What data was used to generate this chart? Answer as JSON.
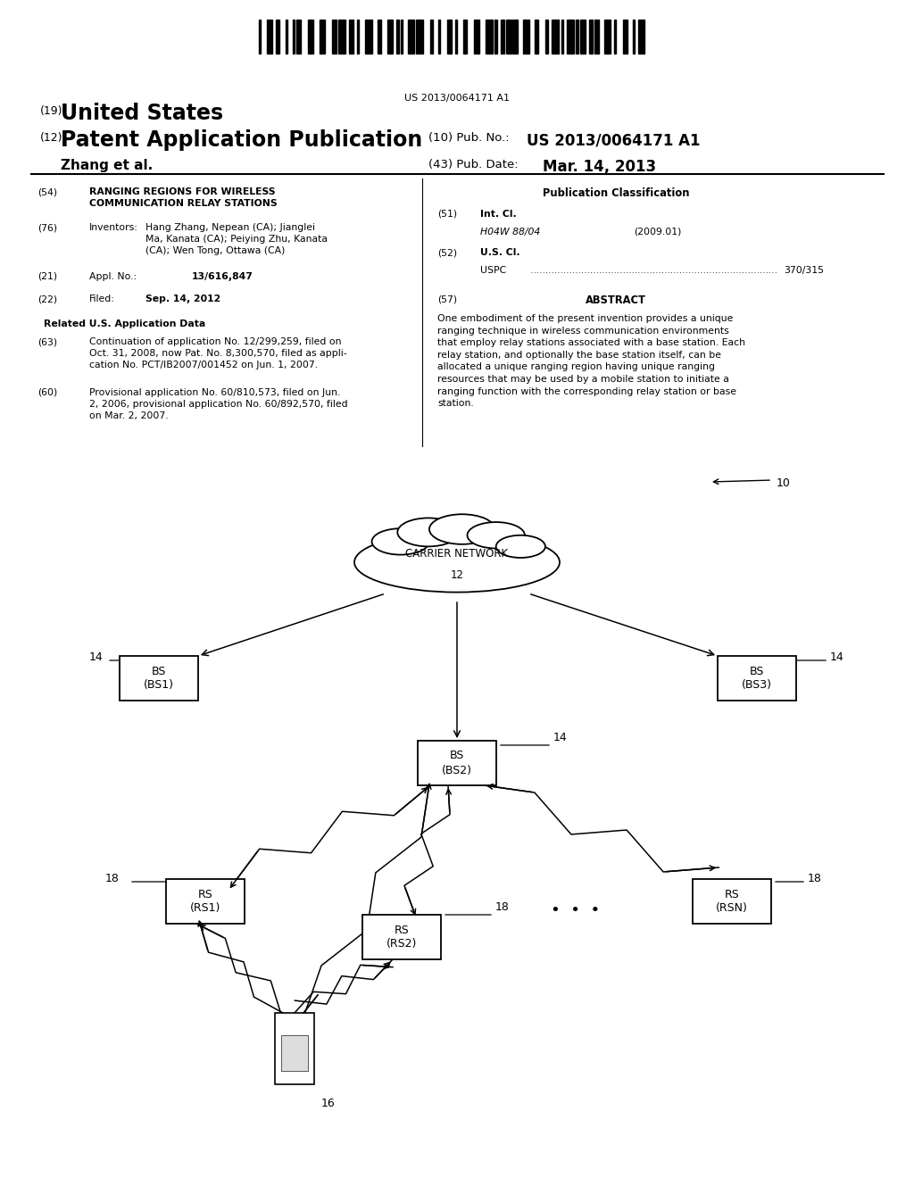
{
  "bg_color": "#ffffff",
  "barcode_text": "US 2013/0064171 A1",
  "header": {
    "country_num": "(19)",
    "country": "United States",
    "type_num": "(12)",
    "type": "Patent Application Publication",
    "pub_num_label": "(10) Pub. No.:",
    "pub_num": "US 2013/0064171 A1",
    "author": "Zhang et al.",
    "date_label": "(43) Pub. Date:",
    "date": "Mar. 14, 2013"
  },
  "left_col": {
    "title_num": "(54)",
    "title": "RANGING REGIONS FOR WIRELESS\nCOMMUNICATION RELAY STATIONS",
    "inventors_num": "(76)",
    "inventors_label": "Inventors:",
    "inventors": "Hang Zhang, Nepean (CA); Jianglei\nMa, Kanata (CA); Peiying Zhu, Kanata\n(CA); Wen Tong, Ottawa (CA)",
    "appl_num": "(21)",
    "appl_label": "Appl. No.:",
    "appl_val": "13/616,847",
    "filed_num": "(22)",
    "filed_label": "Filed:",
    "filed_val": "Sep. 14, 2012",
    "related_title": "Related U.S. Application Data",
    "cont63": "(63)",
    "cont63_text": "Continuation of application No. 12/299,259, filed on\nOct. 31, 2008, now Pat. No. 8,300,570, filed as appli-\ncation No. PCT/IB2007/001452 on Jun. 1, 2007.",
    "cont60": "(60)",
    "cont60_text": "Provisional application No. 60/810,573, filed on Jun.\n2, 2006, provisional application No. 60/892,570, filed\non Mar. 2, 2007."
  },
  "right_col": {
    "pub_class_title": "Publication Classification",
    "int_cl_num": "(51)",
    "int_cl_label": "Int. Cl.",
    "int_cl_val": "H04W 88/04",
    "int_cl_year": "(2009.01)",
    "us_cl_num": "(52)",
    "us_cl_label": "U.S. Cl.",
    "uspc_label": "USPC",
    "uspc_val": "370/315",
    "abstract_num": "(57)",
    "abstract_title": "ABSTRACT",
    "abstract_text": "One embodiment of the present invention provides a unique\nranging technique in wireless communication environments\nthat employ relay stations associated with a base station. Each\nrelay station, and optionally the base station itself, can be\nallocated a unique ranging region having unique ranging\nresources that may be used by a mobile station to initiate a\nranging function with the corresponding relay station or base\nstation."
  }
}
